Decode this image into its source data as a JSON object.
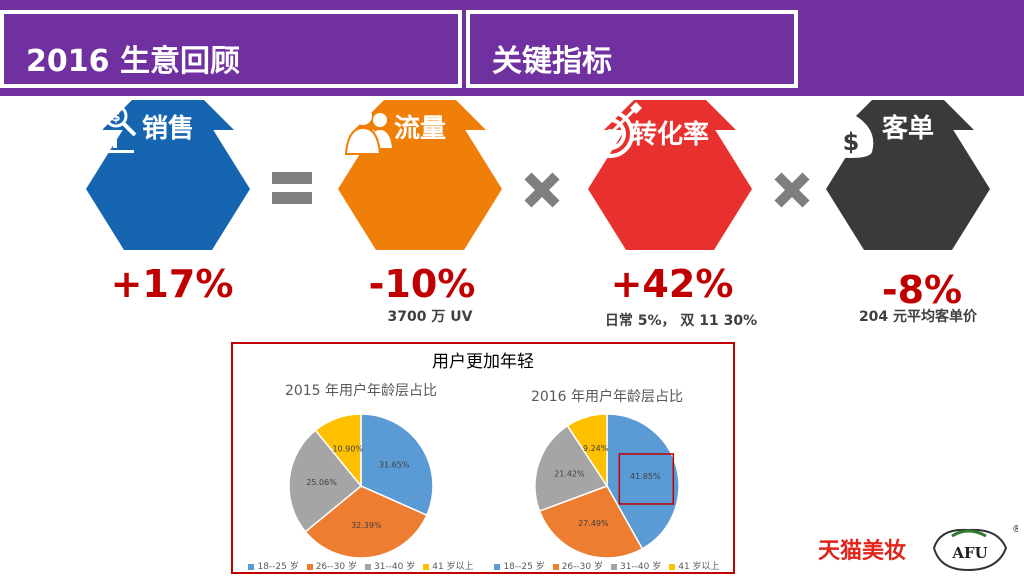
{
  "header": {
    "left_title": "2016 生意回顾",
    "right_title": "关键指标"
  },
  "metrics": [
    {
      "label": "销售",
      "value": "+17%",
      "sub": "",
      "color": "#1565b0",
      "icon": "sales-chart-icon"
    },
    {
      "label": "流量",
      "value": "-10%",
      "sub": "3700 万 UV",
      "color": "#f07f09",
      "icon": "crowd-icon"
    },
    {
      "label": "转化率",
      "value": "+42%",
      "sub": "日常 5%， 双 11 30%",
      "color": "#e8312e",
      "icon": "target-icon"
    },
    {
      "label": "客单",
      "value": "-8%",
      "sub": "204 元平均客单价",
      "color": "#3a3a3a",
      "icon": "money-bag-icon"
    }
  ],
  "operators": [
    "=",
    "×",
    "×"
  ],
  "colors": {
    "purple": "#7030a0",
    "red_text": "#c00000",
    "operator_gray": "#7f7f7f"
  },
  "chart_section": {
    "title": "用户更加年轻"
  },
  "chart_data": [
    {
      "type": "pie",
      "title": "2015 年用户年龄层占比",
      "categories": [
        "18--25 岁",
        "26--30 岁",
        "31--40 岁",
        "41 岁以上"
      ],
      "values": [
        31.65,
        32.39,
        25.06,
        10.9
      ],
      "labels": [
        "31.65%",
        "32.39%",
        "25.06%",
        "10.90%"
      ],
      "colors": [
        "#5b9bd5",
        "#ed7d31",
        "#a5a5a5",
        "#ffc000"
      ]
    },
    {
      "type": "pie",
      "title": "2016 年用户年龄层占比",
      "categories": [
        "18--25 岁",
        "26--30 岁",
        "31--40 岁",
        "41 岁以上"
      ],
      "values": [
        41.85,
        27.49,
        21.42,
        9.24
      ],
      "labels": [
        "41.85%",
        "27.49%",
        "21.42%",
        "9.24%"
      ],
      "colors": [
        "#5b9bd5",
        "#ed7d31",
        "#a5a5a5",
        "#ffc000"
      ],
      "highlight": "41.85%"
    }
  ],
  "brand": {
    "name": "天猫美妆",
    "logo_text": "AFU",
    "registered": "®"
  }
}
